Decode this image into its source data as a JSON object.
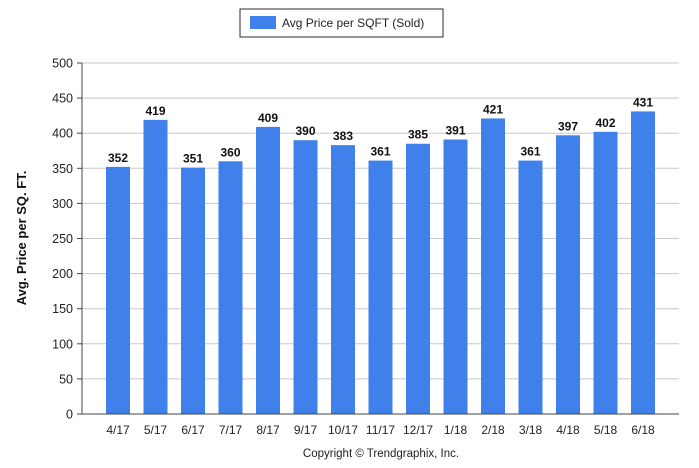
{
  "chart_data": {
    "type": "bar",
    "title": "",
    "xlabel": "",
    "ylabel": "Avg. Price per SQ. FT.",
    "legend": {
      "position": "top-center",
      "entries": [
        "Avg Price per SQFT (Sold)"
      ]
    },
    "categories": [
      "4/17",
      "5/17",
      "6/17",
      "7/17",
      "8/17",
      "9/17",
      "10/17",
      "11/17",
      "12/17",
      "1/18",
      "2/18",
      "3/18",
      "4/18",
      "5/18",
      "6/18"
    ],
    "series": [
      {
        "name": "Avg Price per SQFT (Sold)",
        "values": [
          352,
          419,
          351,
          360,
          409,
          390,
          383,
          361,
          385,
          391,
          421,
          361,
          397,
          402,
          431
        ]
      }
    ],
    "ylim": [
      0,
      500
    ],
    "yticks": [
      0,
      50,
      100,
      150,
      200,
      250,
      300,
      350,
      400,
      450,
      500
    ],
    "grid": true,
    "bar_color": "#3F80EA",
    "footer": "Copyright © Trendgraphix, Inc."
  }
}
